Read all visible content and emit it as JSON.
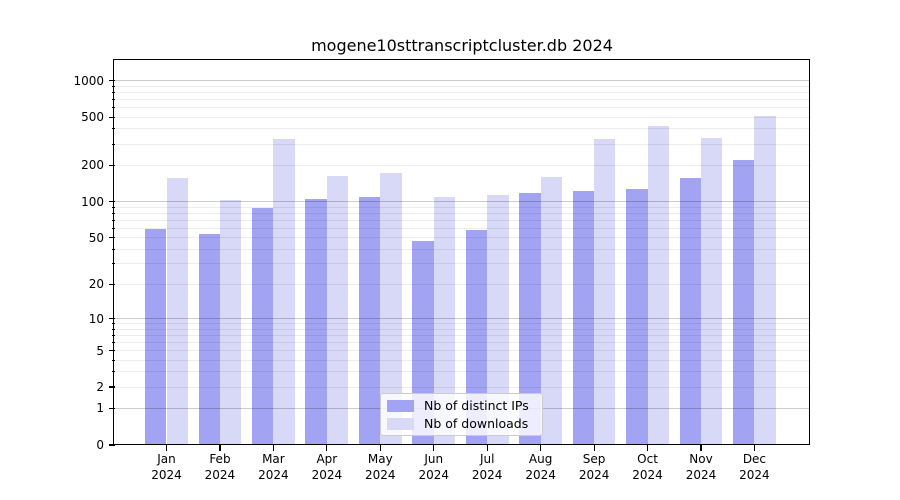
{
  "chart_data": {
    "type": "bar",
    "title": "mogene10sttranscriptcluster.db 2024",
    "categories": [
      "Jan 2024",
      "Feb 2024",
      "Mar 2024",
      "Apr 2024",
      "May 2024",
      "Jun 2024",
      "Jul 2024",
      "Aug 2024",
      "Sep 2024",
      "Oct 2024",
      "Nov 2024",
      "Dec 2024"
    ],
    "x_tick_months": [
      "Jan",
      "Feb",
      "Mar",
      "Apr",
      "May",
      "Jun",
      "Jul",
      "Aug",
      "Sep",
      "Oct",
      "Nov",
      "Dec"
    ],
    "x_tick_year": "2024",
    "series": [
      {
        "name": "Nb of distinct IPs",
        "color": "#a3a3f3",
        "values": [
          59,
          54,
          88,
          105,
          110,
          47,
          58,
          117,
          123,
          127,
          156,
          222
        ]
      },
      {
        "name": "Nb of downloads",
        "color": "#d8d8f7",
        "values": [
          156,
          103,
          331,
          164,
          172,
          109,
          114,
          161,
          329,
          423,
          337,
          515
        ]
      }
    ],
    "y_ticks": [
      0,
      1,
      2,
      5,
      10,
      20,
      50,
      100,
      200,
      500,
      1000
    ],
    "y_scale": "log10(1+value)",
    "ylim": [
      0,
      1500
    ],
    "xlabel": "",
    "ylabel": "",
    "grid": "major and log-minor horizontal gridlines, drawn over bars",
    "legend_position": "lower center"
  },
  "colors": {
    "background": "#ffffff",
    "axis": "#000000",
    "major_grid": "rgba(0,0,0,0.20)",
    "minor_grid": "rgba(0,0,0,0.07)",
    "legend_border": "#cccccc",
    "legend_background": "rgba(255,255,255,0.8)"
  }
}
